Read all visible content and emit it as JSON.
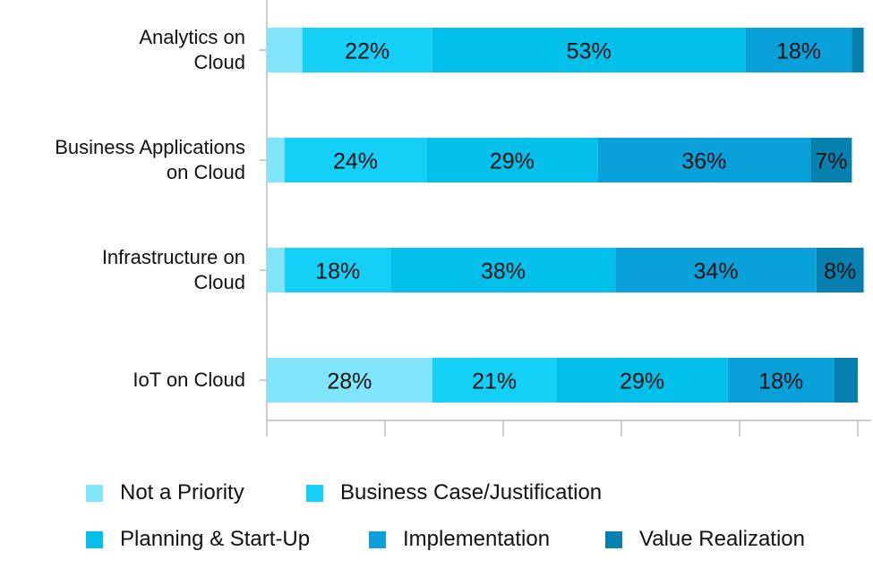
{
  "chart_data": {
    "type": "stacked-bar-horizontal",
    "categories": [
      "Analytics on\nCloud",
      "Business Applications\non Cloud",
      "Infrastructure on\nCloud",
      "IoT on Cloud"
    ],
    "series": [
      {
        "name": "Not a Priority",
        "color": "#80e4fb",
        "values": [
          6,
          3,
          3,
          28
        ],
        "value_labels": [
          null,
          null,
          null,
          "28%"
        ]
      },
      {
        "name": "Business Case/Justification",
        "color": "#14cff6",
        "values": [
          22,
          24,
          18,
          21
        ],
        "value_labels": [
          "22%",
          "24%",
          "18%",
          "21%"
        ]
      },
      {
        "name": "Planning & Start-Up",
        "color": "#02c0ea",
        "values": [
          53,
          29,
          38,
          29
        ],
        "value_labels": [
          "53%",
          "29%",
          "38%",
          "29%"
        ]
      },
      {
        "name": "Implementation",
        "color": "#0aa1da",
        "values": [
          18,
          36,
          34,
          18
        ],
        "value_labels": [
          "18%",
          "36%",
          "34%",
          "18%"
        ]
      },
      {
        "name": "Value Realization",
        "color": "#0680ae",
        "values": [
          2,
          7,
          8,
          4
        ],
        "value_labels": [
          null,
          "7%",
          "8%",
          null
        ]
      }
    ],
    "xlim": [
      0,
      100
    ],
    "xticks": [
      0,
      20,
      40,
      60,
      80,
      100
    ]
  }
}
